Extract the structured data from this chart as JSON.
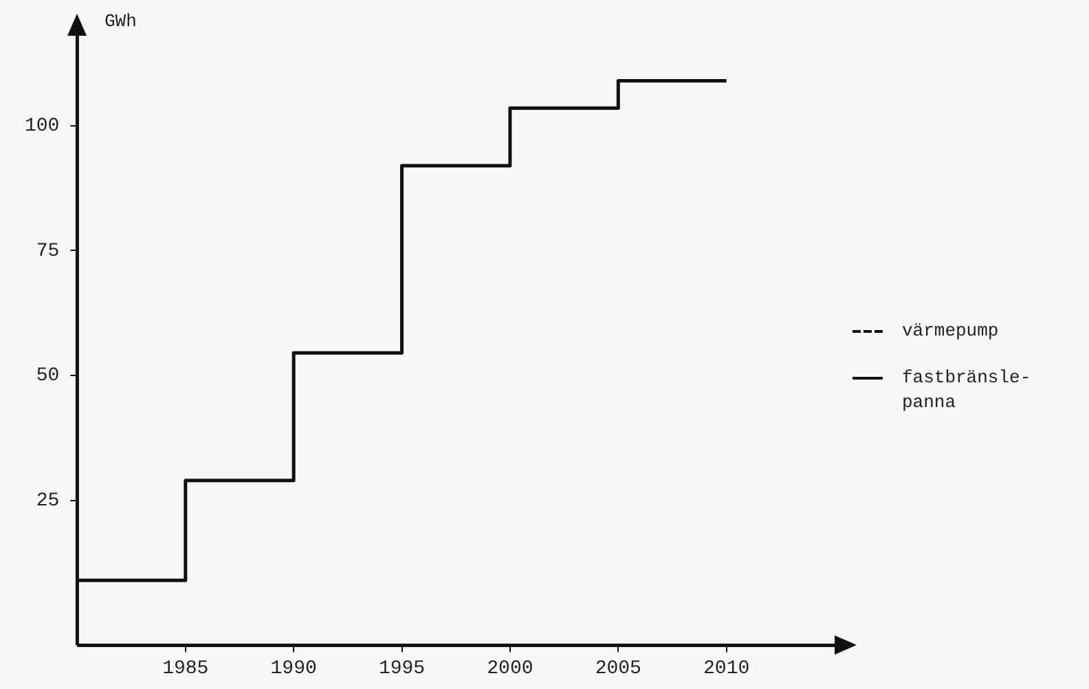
{
  "chart_data": {
    "type": "step",
    "ylabel": "GWh",
    "x": [
      1980,
      1985,
      1990,
      1995,
      2000,
      2005,
      2010
    ],
    "series": [
      {
        "name": "värmepump",
        "color": "#111111",
        "line_style": "dashed",
        "values": [
          null,
          null,
          null,
          null,
          null,
          null,
          null
        ]
      },
      {
        "name": "fastbränsle-panna",
        "color": "#111111",
        "line_style": "solid",
        "values": [
          9,
          29,
          54.5,
          92,
          103.5,
          109,
          109
        ]
      }
    ],
    "xlim": [
      1980,
      2015
    ],
    "xticks": [
      1985,
      1990,
      1995,
      2000,
      2005,
      2010
    ],
    "ylim": [
      -4,
      118
    ],
    "yticks": [
      25,
      50,
      75,
      100
    ],
    "legend": "right",
    "grid": false,
    "marker": "none"
  }
}
